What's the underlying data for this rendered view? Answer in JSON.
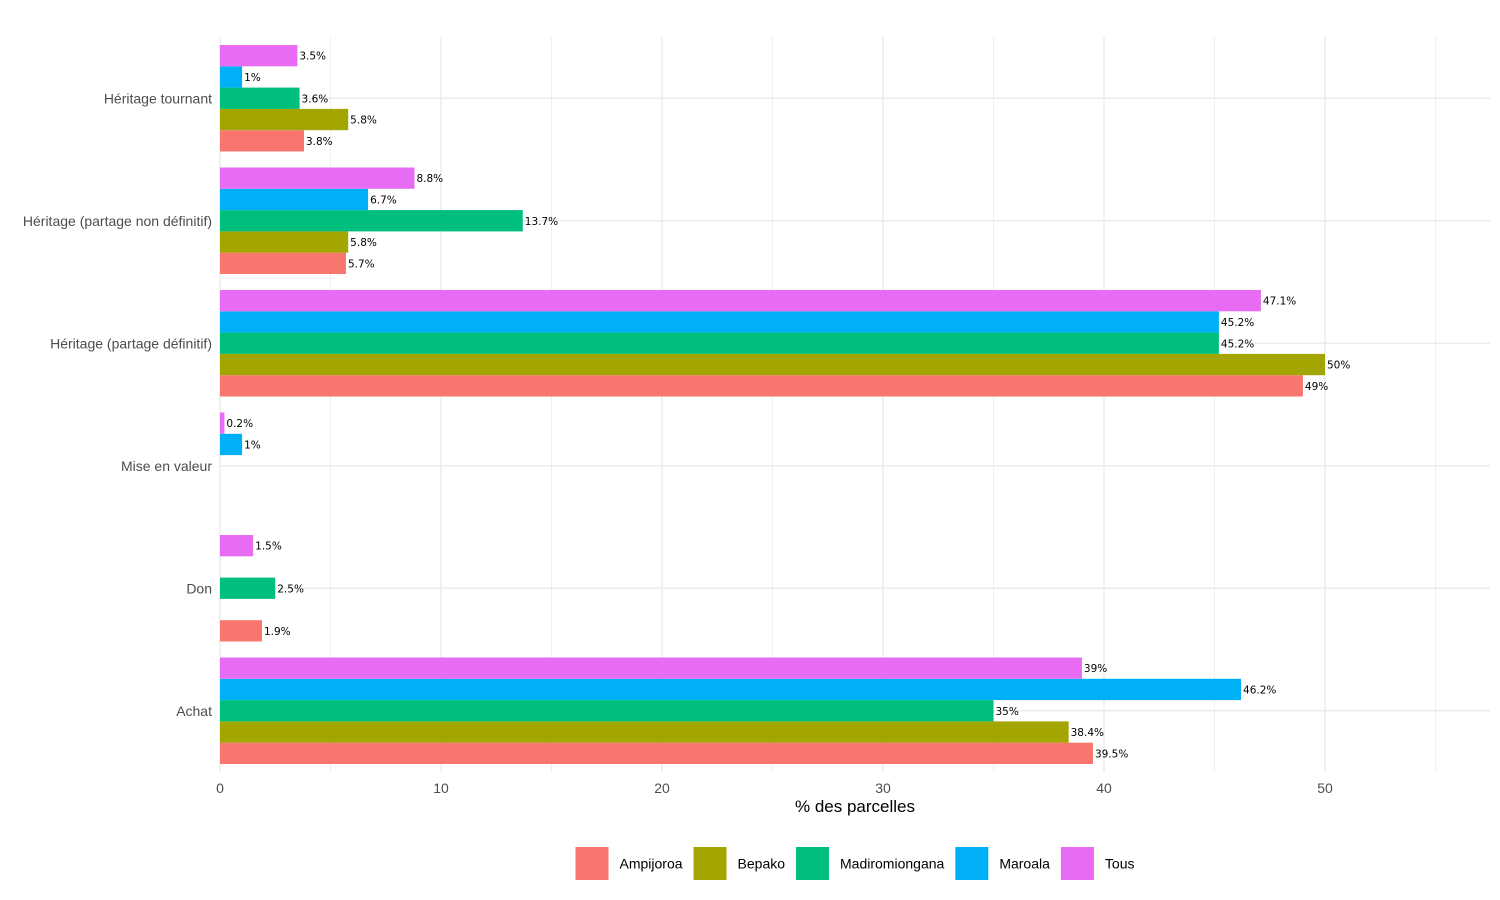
{
  "chart_data": {
    "type": "bar",
    "orientation": "horizontal",
    "title": "",
    "xlabel": "% des parcelles",
    "ylabel": "",
    "xlim": [
      0,
      57
    ],
    "x_ticks": [
      0,
      10,
      20,
      30,
      40,
      50
    ],
    "grid": true,
    "legend_position": "bottom",
    "categories": [
      "Achat",
      "Don",
      "Mise en valeur",
      "Héritage (partage définitif)",
      "Héritage (partage non définitif)",
      "Héritage tournant"
    ],
    "series": [
      {
        "name": "Ampijoroa",
        "color": "#F8766D",
        "values": [
          39.5,
          1.9,
          null,
          49,
          5.7,
          3.8
        ],
        "labels": [
          "39.5%",
          "1.9%",
          null,
          "49%",
          "5.7%",
          "3.8%"
        ]
      },
      {
        "name": "Bepako",
        "color": "#A3A500",
        "values": [
          38.4,
          null,
          null,
          50,
          5.8,
          5.8
        ],
        "labels": [
          "38.4%",
          null,
          null,
          "50%",
          "5.8%",
          "5.8%"
        ]
      },
      {
        "name": "Madiromiongana",
        "color": "#00BF7D",
        "values": [
          35,
          2.5,
          null,
          45.2,
          13.7,
          3.6
        ],
        "labels": [
          "35%",
          "2.5%",
          null,
          "45.2%",
          "13.7%",
          "3.6%"
        ]
      },
      {
        "name": "Maroala",
        "color": "#00B0F6",
        "values": [
          46.2,
          null,
          1,
          45.2,
          6.7,
          1
        ],
        "labels": [
          "46.2%",
          null,
          "1%",
          "45.2%",
          "6.7%",
          "1%"
        ]
      },
      {
        "name": "Tous",
        "color": "#E76BF3",
        "values": [
          39,
          1.5,
          0.2,
          47.1,
          8.8,
          3.5
        ],
        "labels": [
          "39%",
          "1.5%",
          "0.2%",
          "47.1%",
          "8.8%",
          "3.5%"
        ]
      }
    ]
  }
}
